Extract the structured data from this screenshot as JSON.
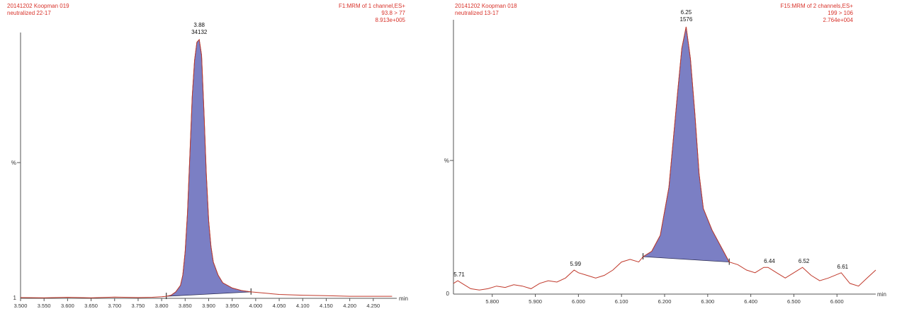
{
  "chart_data": [
    {
      "type": "line",
      "header_left": [
        "20141202 Koopman  019",
        "neutralized 22-17"
      ],
      "header_right": [
        "F1:MRM of 1 channel,ES+",
        "93.8 > 77",
        "8.913e+005"
      ],
      "ylabel": "%",
      "xlabel": "min",
      "xlim": [
        3.5,
        4.3
      ],
      "ylim": [
        0,
        100
      ],
      "x_ticks": [
        "3.500",
        "3.550",
        "3.600",
        "3.650",
        "3.700",
        "3.750",
        "3.800",
        "3.850",
        "3.900",
        "3.950",
        "4.000",
        "4.050",
        "4.100",
        "4.150",
        "4.200",
        "4.250"
      ],
      "y_ticks": [
        "1"
      ],
      "colors": {
        "trace": "#c0392b",
        "fill": "#7b7fc4",
        "axis": "#555555"
      },
      "peaks": [
        {
          "time": "3.88",
          "area": "34132"
        }
      ],
      "integration": {
        "start": 3.81,
        "end": 3.99
      },
      "trace": {
        "x": [
          3.5,
          3.55,
          3.6,
          3.65,
          3.7,
          3.75,
          3.78,
          3.8,
          3.81,
          3.82,
          3.83,
          3.84,
          3.845,
          3.85,
          3.855,
          3.86,
          3.865,
          3.87,
          3.875,
          3.88,
          3.885,
          3.89,
          3.895,
          3.9,
          3.905,
          3.91,
          3.92,
          3.93,
          3.95,
          3.97,
          3.99,
          4.05,
          4.1,
          4.15,
          4.2,
          4.29
        ],
        "y": [
          0.3,
          0.2,
          0.4,
          0.2,
          0.5,
          0.3,
          0.4,
          0.6,
          0.8,
          1.2,
          2.5,
          5,
          9,
          18,
          33,
          55,
          78,
          92,
          99,
          100,
          94,
          72,
          48,
          30,
          20,
          14,
          9,
          6,
          4,
          3,
          2.5,
          1.5,
          1.2,
          1.0,
          0.8,
          0.8
        ]
      }
    },
    {
      "type": "line",
      "header_left": [
        "20141202 Koopman  018",
        "neutralized 13-17"
      ],
      "header_right": [
        "F15:MRM of 2 channels,ES+",
        "199 > 106",
        "2.764e+004"
      ],
      "ylabel": "%",
      "xlabel": "min",
      "xlim": [
        5.71,
        6.69
      ],
      "ylim": [
        0,
        100
      ],
      "x_ticks": [
        "5.800",
        "5.900",
        "6.000",
        "6.100",
        "6.200",
        "6.300",
        "6.400",
        "6.500",
        "6.600"
      ],
      "y_ticks": [
        "0"
      ],
      "colors": {
        "trace": "#c0392b",
        "fill": "#7b7fc4",
        "axis": "#555555"
      },
      "peaks": [
        {
          "time": "6.25",
          "area": "1576"
        }
      ],
      "minor_peaks": [
        {
          "time": "5.71",
          "x": 5.72
        },
        {
          "time": "5.99",
          "x": 5.99
        },
        {
          "time": "6.44",
          "x": 6.44
        },
        {
          "time": "6.52",
          "x": 6.52
        },
        {
          "time": "6.61",
          "x": 6.61
        }
      ],
      "integration": {
        "start": 6.15,
        "end": 6.35
      },
      "trace": {
        "x": [
          5.71,
          5.72,
          5.73,
          5.75,
          5.77,
          5.79,
          5.81,
          5.83,
          5.85,
          5.87,
          5.89,
          5.91,
          5.93,
          5.95,
          5.97,
          5.99,
          6.0,
          6.02,
          6.04,
          6.06,
          6.08,
          6.1,
          6.12,
          6.14,
          6.15,
          6.17,
          6.19,
          6.21,
          6.23,
          6.24,
          6.25,
          6.26,
          6.27,
          6.28,
          6.29,
          6.31,
          6.33,
          6.35,
          6.37,
          6.39,
          6.41,
          6.43,
          6.44,
          6.46,
          6.48,
          6.5,
          6.52,
          6.54,
          6.56,
          6.58,
          6.61,
          6.63,
          6.65,
          6.67,
          6.69
        ],
        "y": [
          4,
          5,
          4,
          2,
          1.5,
          2,
          3,
          2.5,
          3.5,
          3,
          2,
          4,
          5,
          4.5,
          6,
          9,
          8,
          7,
          6,
          7,
          9,
          12,
          13,
          12,
          14,
          16,
          22,
          40,
          75,
          92,
          100,
          88,
          68,
          45,
          32,
          24,
          18,
          12,
          11,
          9,
          8,
          10,
          10,
          8,
          6,
          8,
          10,
          7,
          5,
          6,
          8,
          4,
          3,
          6,
          9
        ]
      }
    }
  ]
}
